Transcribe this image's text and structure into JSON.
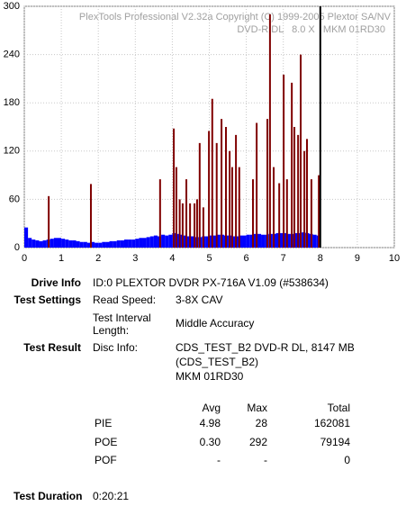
{
  "chart_data": {
    "type": "bar",
    "watermark": [
      "PlexTools Professional V2.32a Copyright (C) 1999-2005 Plextor SA/NV",
      "DVD-R DL   8.0 X   MKM 01RD30"
    ],
    "xlim": [
      0,
      10
    ],
    "xticks": [
      0,
      1,
      2,
      3,
      4,
      5,
      6,
      7,
      8,
      9,
      10
    ],
    "ylim": [
      0,
      300
    ],
    "yticks": [
      0,
      60,
      120,
      180,
      240,
      300
    ],
    "grid": true,
    "series": [
      {
        "color": "#0000ff",
        "width": 0.1,
        "x": [
          0,
          0.1,
          0.2,
          0.3,
          0.4,
          0.5,
          0.6,
          0.7,
          0.8,
          0.9,
          1,
          1.1,
          1.2,
          1.3,
          1.4,
          1.5,
          1.6,
          1.7,
          1.8,
          1.9,
          2,
          2.1,
          2.2,
          2.3,
          2.4,
          2.5,
          2.6,
          2.7,
          2.8,
          2.9,
          3,
          3.1,
          3.2,
          3.3,
          3.4,
          3.5,
          3.6,
          3.7,
          3.8,
          3.9,
          4,
          4.1,
          4.2,
          4.3,
          4.4,
          4.5,
          4.6,
          4.7,
          4.8,
          4.9,
          5,
          5.1,
          5.2,
          5.3,
          5.4,
          5.5,
          5.6,
          5.7,
          5.8,
          5.9,
          6,
          6.1,
          6.2,
          6.3,
          6.4,
          6.5,
          6.6,
          6.7,
          6.8,
          6.9,
          7,
          7.1,
          7.2,
          7.3,
          7.4,
          7.5,
          7.6,
          7.7,
          7.8,
          7.9
        ],
        "values": [
          25,
          12,
          10,
          9,
          8,
          9,
          10,
          11,
          12,
          12,
          11,
          10,
          9,
          9,
          8,
          7,
          7,
          6,
          7,
          6,
          6,
          7,
          7,
          8,
          8,
          9,
          9,
          10,
          10,
          10,
          11,
          12,
          12,
          13,
          14,
          15,
          14,
          16,
          15,
          16,
          18,
          17,
          16,
          15,
          14,
          14,
          13,
          13,
          14,
          14,
          15,
          15,
          16,
          16,
          15,
          15,
          14,
          14,
          15,
          15,
          16,
          16,
          17,
          17,
          16,
          16,
          17,
          17,
          18,
          18,
          18,
          17,
          17,
          18,
          18,
          19,
          18,
          17,
          16,
          15
        ]
      },
      {
        "color": "#800000",
        "width": 0,
        "x": [
          0.66,
          1.8,
          3.67,
          4.04,
          4.11,
          4.2,
          4.28,
          4.38,
          4.48,
          4.6,
          4.67,
          4.74,
          4.84,
          4.99,
          5.08,
          5.2,
          5.33,
          5.45,
          5.55,
          5.62,
          5.72,
          5.81,
          6.18,
          6.28,
          6.57,
          6.64,
          6.74,
          6.89,
          7.01,
          7.1,
          7.23,
          7.3,
          7.4,
          7.47,
          7.57,
          7.64,
          7.76,
          7.96
        ],
        "values": [
          64,
          79,
          85,
          148,
          100,
          60,
          55,
          85,
          55,
          55,
          60,
          130,
          50,
          145,
          185,
          130,
          160,
          150,
          120,
          100,
          140,
          100,
          85,
          155,
          160,
          290,
          100,
          80,
          215,
          85,
          205,
          150,
          140,
          240,
          120,
          135,
          85,
          90
        ]
      }
    ]
  },
  "report": {
    "drive_info": {
      "label": "Drive Info",
      "value": "ID:0 PLEXTOR DVDR PX-716A V1.09 (#538634)"
    },
    "test_settings": {
      "label": "Test Settings",
      "read_speed_label": "Read Speed:",
      "read_speed": "3-8X CAV",
      "interval_label": [
        "Test Interval",
        "Length:"
      ],
      "interval": "Middle Accuracy"
    },
    "test_result": {
      "label": "Test Result",
      "disc_info_label": "Disc Info:",
      "disc_info": [
        "CDS_TEST_B2 DVD-R DL, 8147 MB",
        "(CDS_TEST_B2)",
        "MKM 01RD30"
      ]
    },
    "table": {
      "header": [
        "Avg",
        "Max",
        "Total"
      ],
      "rows": [
        [
          "PIE",
          "4.98",
          "28",
          "162081"
        ],
        [
          "POE",
          "0.30",
          "292",
          "79194"
        ],
        [
          "POF",
          "-",
          "-",
          "0"
        ]
      ]
    },
    "test_duration": {
      "label": "Test Duration",
      "value": "0:20:21"
    }
  }
}
